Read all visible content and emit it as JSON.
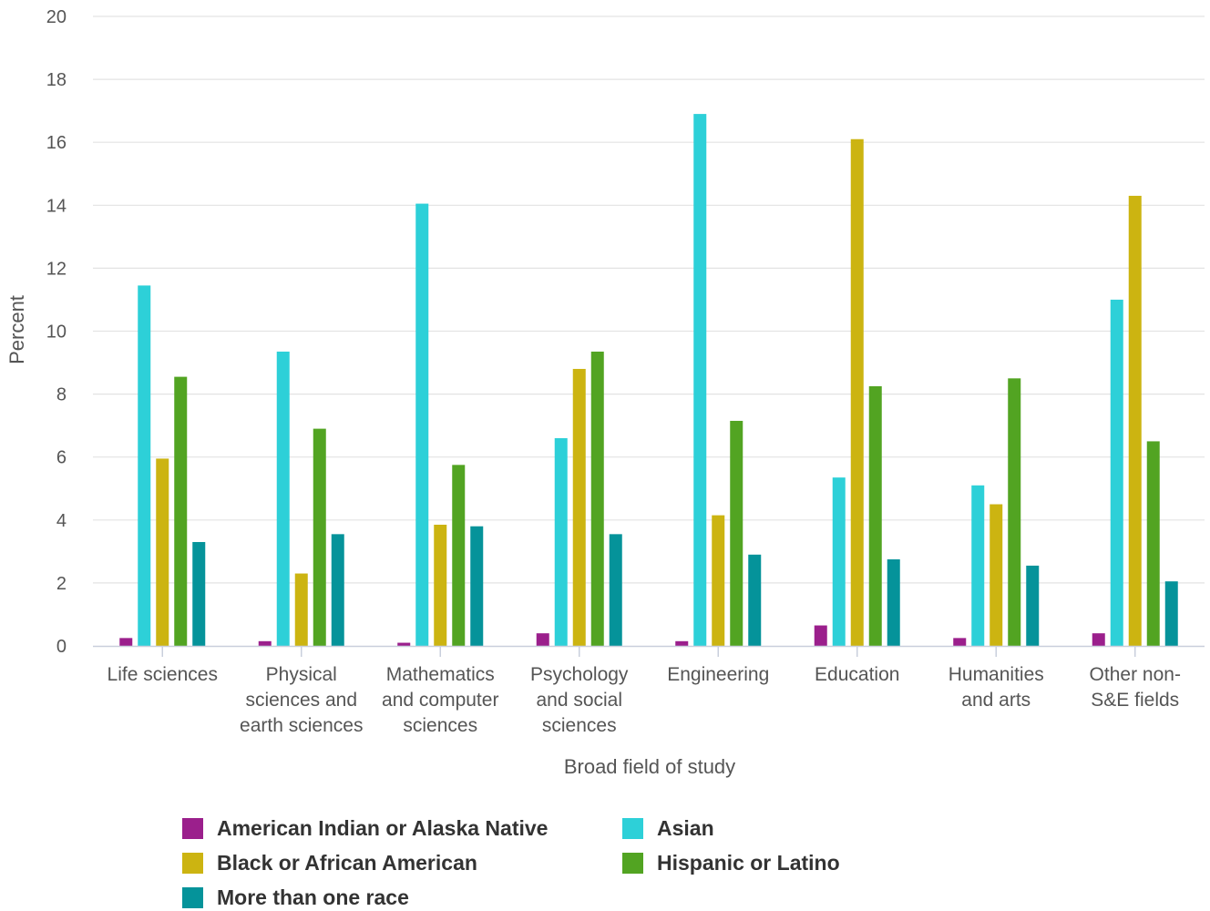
{
  "chart_data": {
    "type": "bar",
    "xlabel": "Broad field of study",
    "ylabel": "Percent",
    "ylim": [
      0,
      20
    ],
    "yticks": [
      0,
      2,
      4,
      6,
      8,
      10,
      12,
      14,
      16,
      18,
      20
    ],
    "grid": true,
    "legend_position": "bottom",
    "categories": [
      [
        "Life sciences"
      ],
      [
        "Physical",
        "sciences and",
        "earth sciences"
      ],
      [
        "Mathematics",
        "and computer",
        "sciences"
      ],
      [
        "Psychology",
        "and social",
        "sciences"
      ],
      [
        "Engineering"
      ],
      [
        "Education"
      ],
      [
        "Humanities",
        "and arts"
      ],
      [
        "Other non-",
        "S&E fields"
      ]
    ],
    "series": [
      {
        "name": "American Indian or Alaska Native",
        "color": "#9b1f8c",
        "values": [
          0.25,
          0.15,
          0.1,
          0.4,
          0.15,
          0.65,
          0.25,
          0.4
        ]
      },
      {
        "name": "Asian",
        "color": "#2dd0d8",
        "values": [
          11.45,
          9.35,
          14.05,
          6.6,
          16.9,
          5.35,
          5.1,
          11.0
        ]
      },
      {
        "name": "Black or African American",
        "color": "#ccb411",
        "values": [
          5.95,
          2.3,
          3.85,
          8.8,
          4.15,
          16.1,
          4.5,
          14.3
        ]
      },
      {
        "name": "Hispanic or Latino",
        "color": "#52a422",
        "values": [
          8.55,
          6.9,
          5.75,
          9.35,
          7.15,
          8.25,
          8.5,
          6.5
        ]
      },
      {
        "name": "More than one race",
        "color": "#05939a",
        "values": [
          3.3,
          3.55,
          3.8,
          3.55,
          2.9,
          2.75,
          2.55,
          2.05
        ]
      }
    ]
  }
}
